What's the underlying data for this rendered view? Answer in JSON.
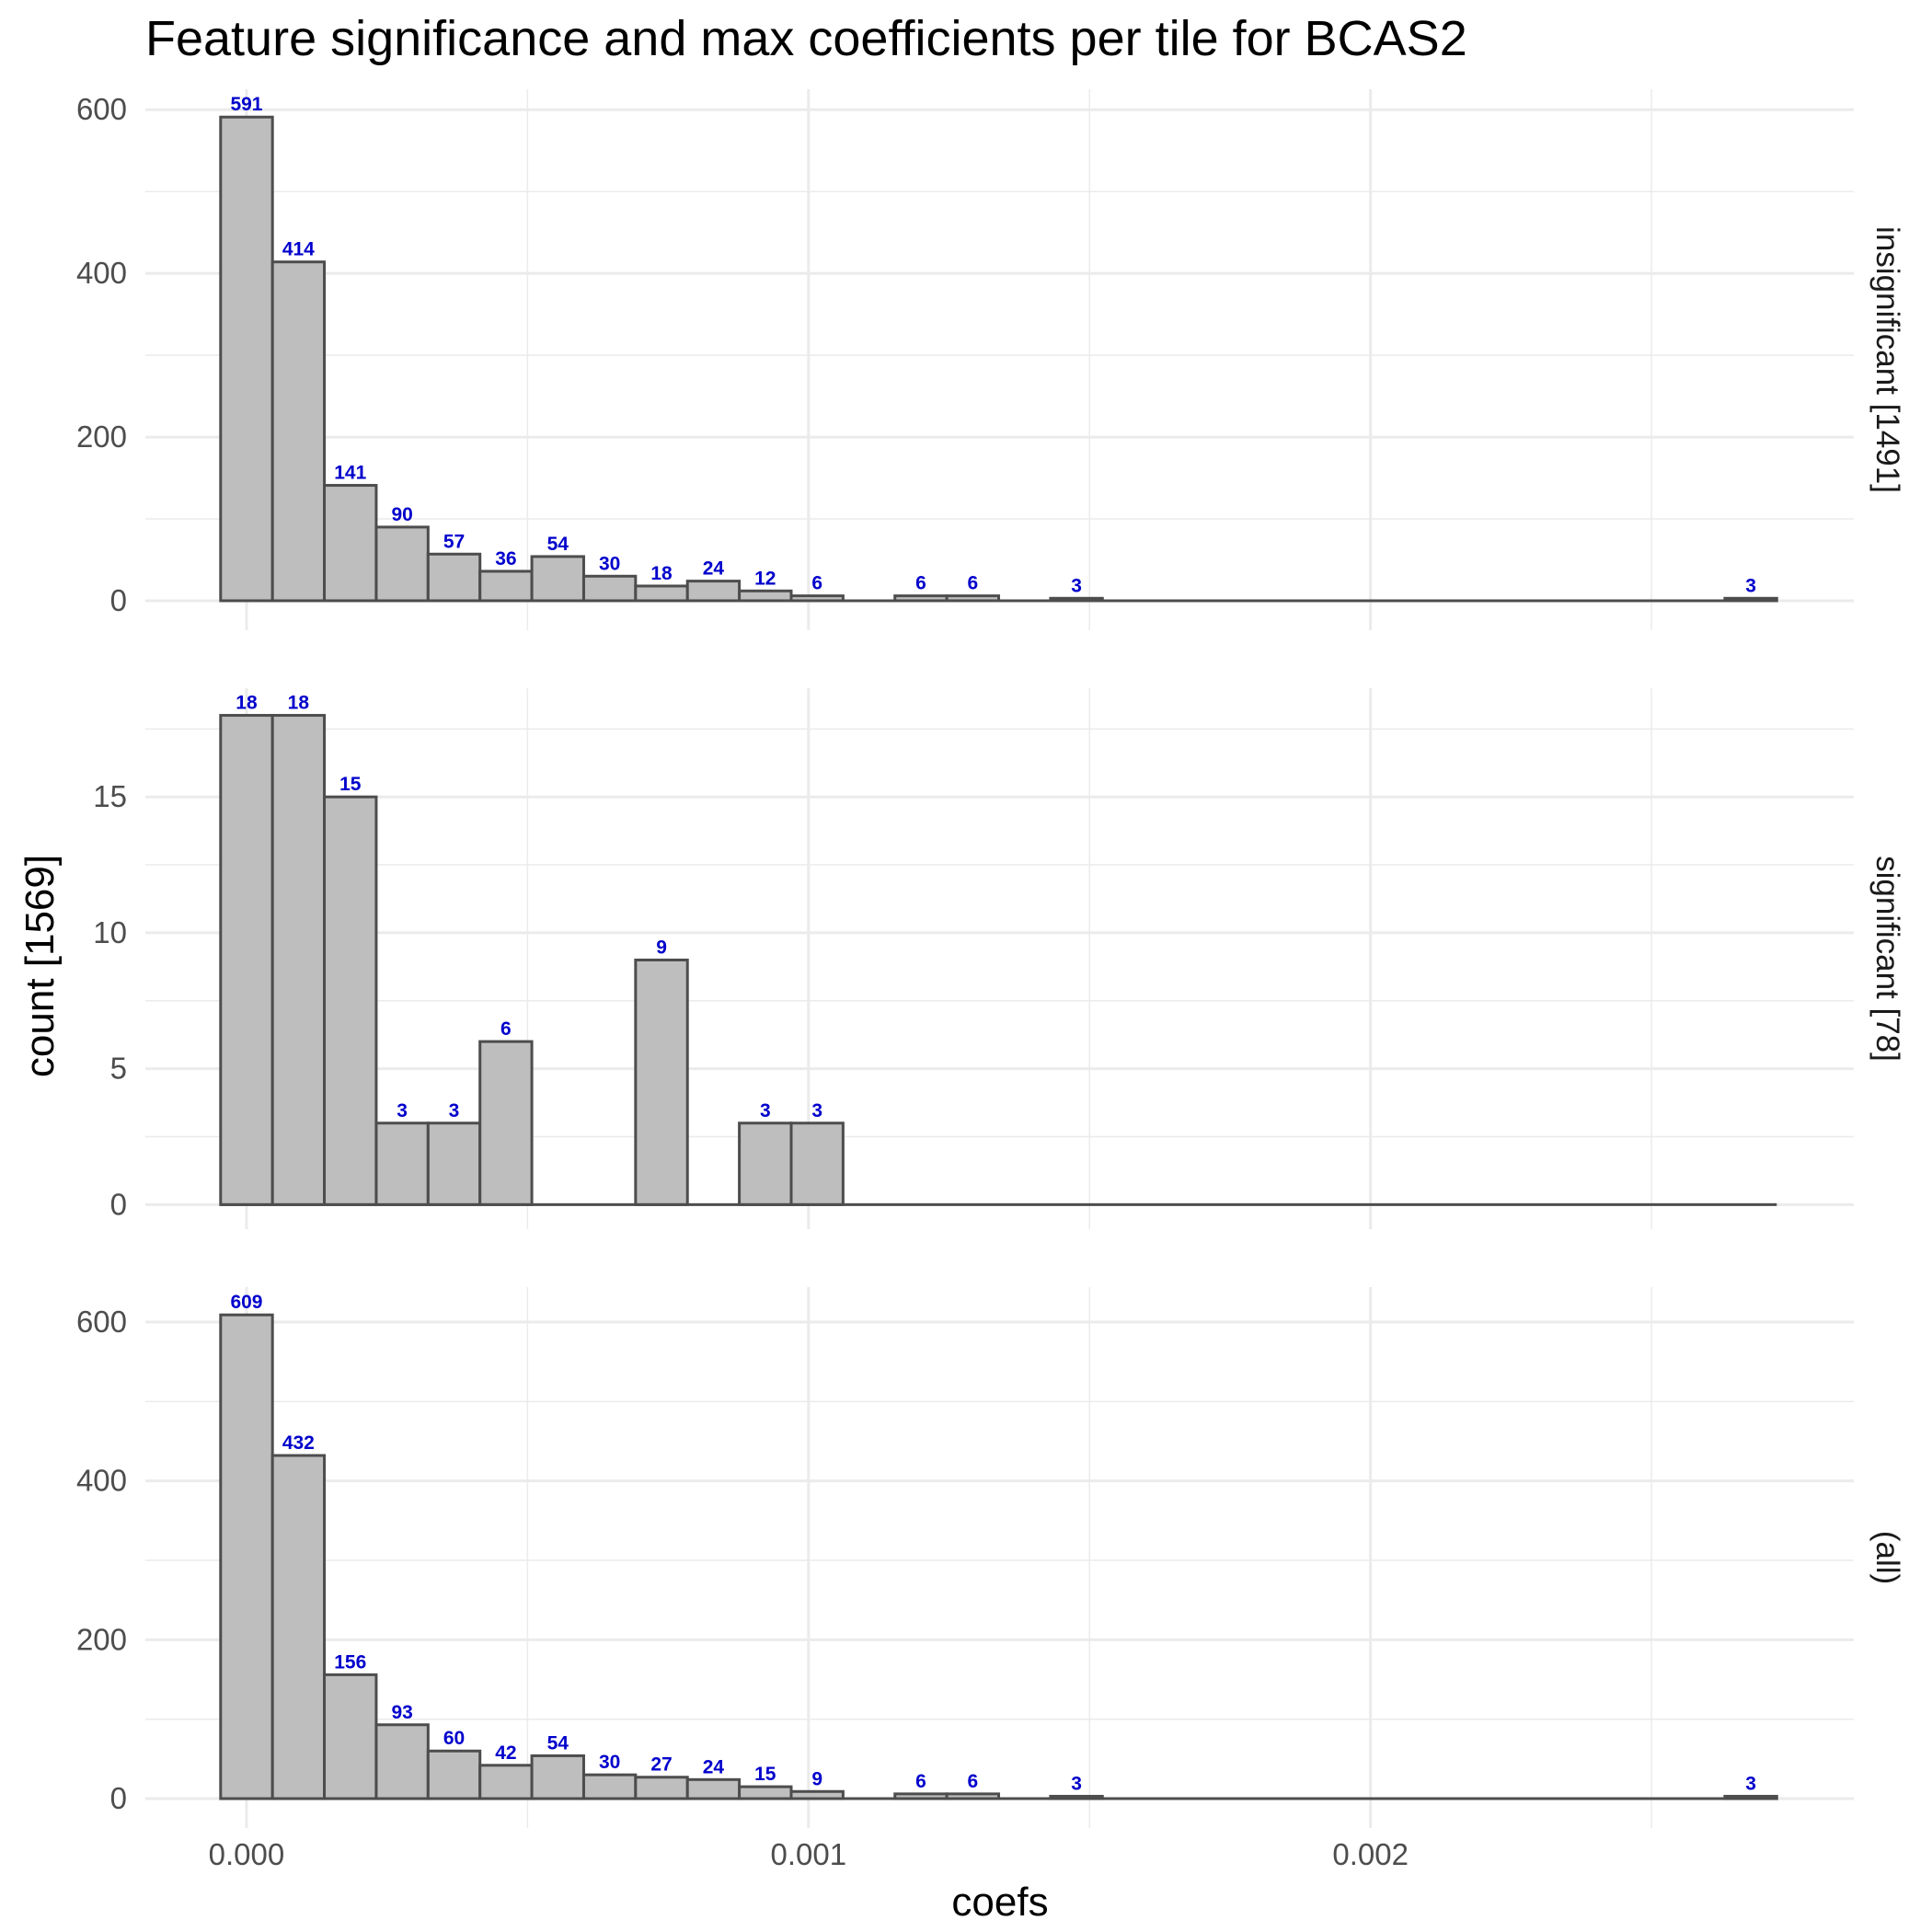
{
  "chart_data": {
    "type": "bar",
    "title": "Feature significance and max coefficients per tile for BCAS2",
    "xlabel": "coefs",
    "ylabel": "count [1569]",
    "xlim": [
      -0.00018,
      0.00286
    ],
    "x_ticks": [
      0.0,
      0.001,
      0.002
    ],
    "x_tick_labels": [
      "0.000",
      "0.001",
      "0.002"
    ],
    "bin_width": 9.23e-05,
    "bin_start": -4.61e-05,
    "grid": true,
    "colors": {
      "bar_fill": "#bebebe",
      "bar_stroke": "#4d4d4d",
      "label": "#0000cc",
      "grid": "#ebebeb"
    },
    "panels": [
      {
        "strip": "insignificant [1491]",
        "ylim": [
          -36,
          625
        ],
        "y_ticks": [
          0,
          200,
          400,
          600
        ],
        "y_tick_labels": [
          "0",
          "200",
          "400",
          "600"
        ],
        "values": [
          591,
          414,
          141,
          90,
          57,
          36,
          54,
          30,
          18,
          24,
          12,
          6,
          0,
          6,
          6,
          0,
          3,
          0,
          0,
          0,
          0,
          0,
          0,
          0,
          0,
          0,
          0,
          0,
          0,
          3
        ]
      },
      {
        "strip": "significant [78]",
        "ylim": [
          -0.9,
          19.0
        ],
        "y_ticks": [
          0,
          5,
          10,
          15
        ],
        "y_tick_labels": [
          "0",
          "5",
          "10",
          "15"
        ],
        "values": [
          18,
          18,
          15,
          3,
          3,
          6,
          0,
          0,
          9,
          0,
          3,
          3,
          0,
          0,
          0,
          0,
          0,
          0,
          0,
          0,
          0,
          0,
          0,
          0,
          0,
          0,
          0,
          0,
          0,
          0
        ]
      },
      {
        "strip": "(all)",
        "ylim": [
          -37,
          644
        ],
        "y_ticks": [
          0,
          200,
          400,
          600
        ],
        "y_tick_labels": [
          "0",
          "200",
          "400",
          "600"
        ],
        "values": [
          609,
          432,
          156,
          93,
          60,
          42,
          54,
          30,
          27,
          24,
          15,
          9,
          0,
          6,
          6,
          0,
          3,
          0,
          0,
          0,
          0,
          0,
          0,
          0,
          0,
          0,
          0,
          0,
          0,
          3
        ]
      }
    ]
  }
}
